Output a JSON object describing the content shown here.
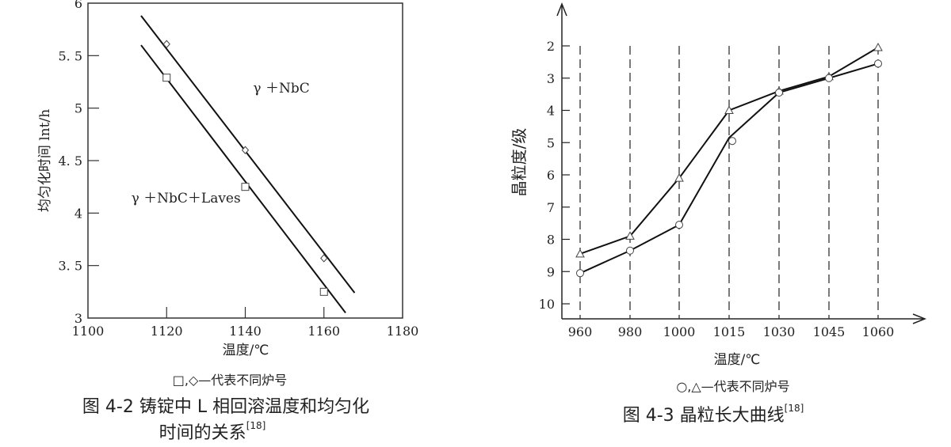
{
  "chart_data": [
    {
      "type": "line",
      "title": "图 4-2 铸锭中 L 相回溶温度和均匀化",
      "title_line2": "时间的关系",
      "title_ref": "[18]",
      "xlabel": "温度/℃",
      "ylabel": "均匀化时间 lnt/h",
      "note": "□,◇—代表不同炉号",
      "xlim": [
        1100,
        1180
      ],
      "ylim": [
        3,
        6
      ],
      "xticks": [
        1100,
        1120,
        1140,
        1160,
        1180
      ],
      "xtick_labels": [
        "1100",
        "1120",
        "1140",
        "1160",
        "1180"
      ],
      "yticks": [
        3,
        3.5,
        4,
        4.5,
        5,
        5.5,
        6
      ],
      "ytick_labels": [
        "3",
        "3. 5",
        "4",
        "4. 5",
        "5",
        "5. 5",
        "6"
      ],
      "grid": false,
      "annotations": [
        {
          "text": "γ ＋NbC",
          "x": 1142,
          "y": 5.15
        },
        {
          "text": "γ ＋NbC＋Laves",
          "x": 1111,
          "y": 4.1
        }
      ],
      "series": [
        {
          "name": "diamond",
          "marker": "diamond",
          "x": [
            1120,
            1140,
            1160
          ],
          "y": [
            5.61,
            4.6,
            3.57
          ],
          "fit_line": {
            "x": [
              1113.5,
              1167.8
            ],
            "y": [
              5.88,
              3.24
            ]
          }
        },
        {
          "name": "square",
          "marker": "square",
          "x": [
            1120,
            1140,
            1160
          ],
          "y": [
            5.29,
            4.25,
            3.25
          ],
          "fit_line": {
            "x": [
              1113.5,
              1165.5
            ],
            "y": [
              5.6,
              3.05
            ]
          }
        }
      ]
    },
    {
      "type": "line",
      "title": "图 4-3 晶粒长大曲线",
      "title_ref": "[18]",
      "xlabel": "温度/℃",
      "ylabel": "晶粒度/级",
      "note": "○,△—代表不同炉号",
      "categories": [
        "960",
        "980",
        "1000",
        "1015",
        "1030",
        "1045",
        "1060"
      ],
      "ylim": [
        10,
        2
      ],
      "yticks": [
        2,
        3,
        4,
        5,
        6,
        7,
        8,
        9,
        10
      ],
      "ytick_labels": [
        "2",
        "3",
        "4",
        "5",
        "6",
        "7",
        "8",
        "9",
        "10"
      ],
      "y_inverted": true,
      "grid": "dashed vertical at categories",
      "series": [
        {
          "name": "triangle",
          "marker": "triangle",
          "values": [
            8.45,
            7.9,
            6.1,
            4.0,
            3.4,
            2.95,
            2.05
          ]
        },
        {
          "name": "circle",
          "marker": "circle",
          "values": [
            9.05,
            8.35,
            7.55,
            4.95,
            3.45,
            3.0,
            2.55
          ]
        }
      ]
    }
  ]
}
